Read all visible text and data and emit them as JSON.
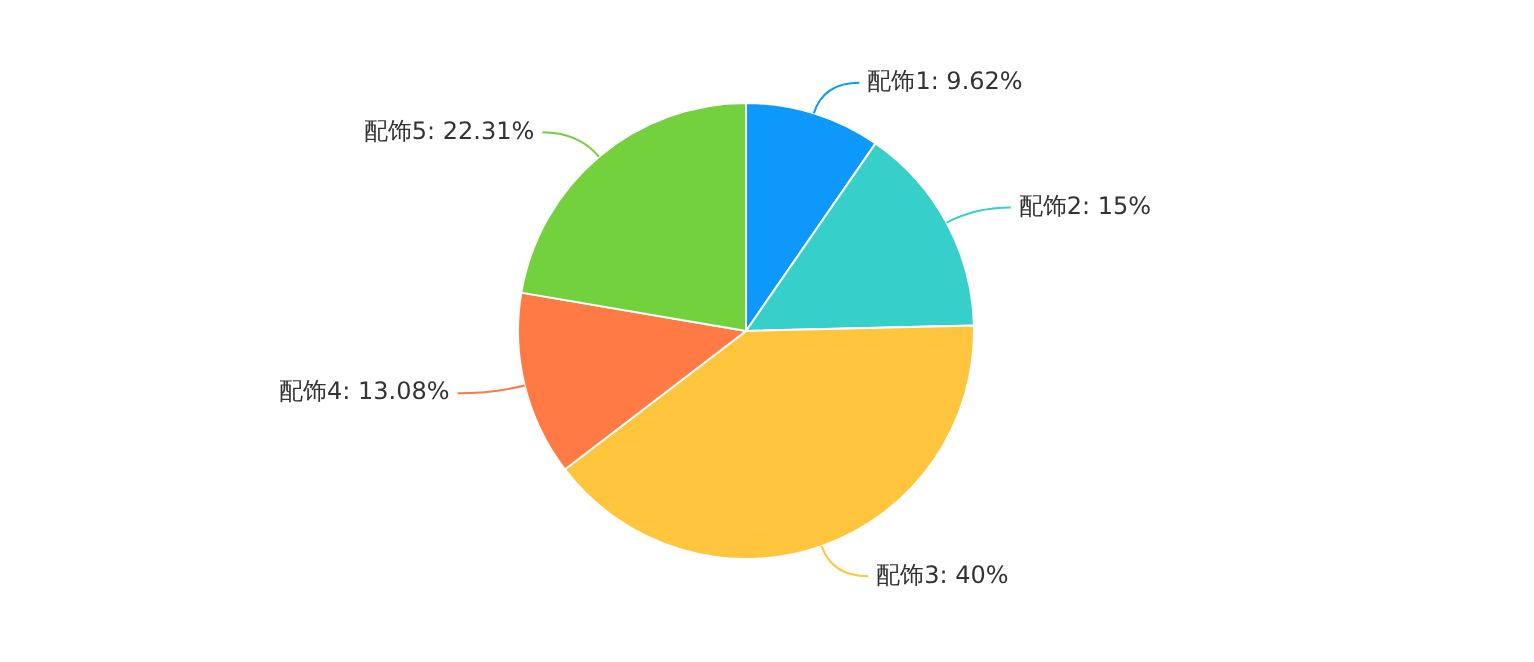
{
  "chart_data": {
    "type": "pie",
    "categories": [
      "配饰1",
      "配饰2",
      "配饰3",
      "配饰4",
      "配饰5"
    ],
    "values": [
      9.62,
      15,
      40,
      13.08,
      22.31
    ],
    "colors": [
      "#0d98fb",
      "#36cfc9",
      "#ffc53d",
      "#ff7a45",
      "#73d13d"
    ],
    "value_labels": [
      "9.62%",
      "15%",
      "40%",
      "13.08%",
      "22.31%"
    ],
    "legend": false
  }
}
